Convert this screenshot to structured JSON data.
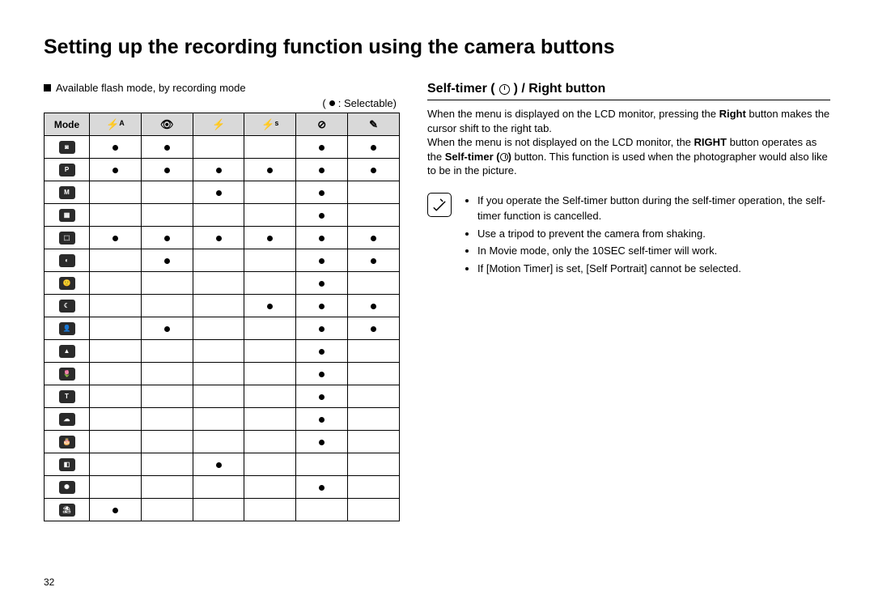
{
  "page_title": "Setting up the recording function using the camera buttons",
  "page_number": "32",
  "left": {
    "section_label": "Available flash mode, by recording mode",
    "legend_prefix": "(",
    "legend_text": " : Selectable)",
    "table": {
      "header_label": "Mode",
      "col_icons": [
        "flash-auto",
        "redeye",
        "flash-fill",
        "flash-slow",
        "flash-off",
        "redeye-fix"
      ],
      "col_display": [
        "⚡ᴬ",
        "👁",
        "⚡",
        "⚡ˢ",
        "⊘",
        "✎"
      ],
      "row_icons": [
        "auto",
        "program",
        "manual",
        "dis",
        "guide",
        "night",
        "portrait",
        "night-scene",
        "child",
        "landscape",
        "closeup",
        "text",
        "sunset",
        "dawn",
        "backlight",
        "firework",
        "beach"
      ],
      "row_display": [
        "◙",
        "P",
        "M",
        "▦",
        "⬚",
        "◐",
        "🙂",
        "☾",
        "👤",
        "▲",
        "🌷",
        "T",
        "☁",
        "🎂",
        "◧",
        "✺",
        "⛱"
      ],
      "cells": [
        [
          1,
          1,
          0,
          0,
          1,
          1
        ],
        [
          1,
          1,
          1,
          1,
          1,
          1
        ],
        [
          0,
          0,
          1,
          0,
          1,
          0
        ],
        [
          0,
          0,
          0,
          0,
          1,
          0
        ],
        [
          1,
          1,
          1,
          1,
          1,
          1
        ],
        [
          0,
          1,
          0,
          0,
          1,
          1
        ],
        [
          0,
          0,
          0,
          0,
          1,
          0
        ],
        [
          0,
          0,
          0,
          1,
          1,
          1
        ],
        [
          0,
          1,
          0,
          0,
          1,
          1
        ],
        [
          0,
          0,
          0,
          0,
          1,
          0
        ],
        [
          0,
          0,
          0,
          0,
          1,
          0
        ],
        [
          0,
          0,
          0,
          0,
          1,
          0
        ],
        [
          0,
          0,
          0,
          0,
          1,
          0
        ],
        [
          0,
          0,
          0,
          0,
          1,
          0
        ],
        [
          0,
          0,
          1,
          0,
          0,
          0
        ],
        [
          0,
          0,
          0,
          0,
          1,
          0
        ],
        [
          1,
          0,
          0,
          0,
          0,
          0
        ]
      ]
    }
  },
  "right": {
    "title_pre": "Self-timer (",
    "title_post": ") / Right button",
    "body_html": "When the menu is displayed on the LCD monitor, pressing the <b>Right</b> button makes the cursor shift to the right tab.<br>When the menu is not displayed on the LCD monitor, the <b>RIGHT</b> button operates as the <b>Self-timer (<span class='timer-icon' style='width:10px;height:10px;vertical-align:middle'></span>)</b> button. This function is used when the photographer would also like to be in the picture.",
    "notes": [
      "If you operate the Self-timer button during the self-timer operation, the self-timer function is cancelled.",
      "Use a tripod to prevent the camera from shaking.",
      "In Movie mode, only the 10SEC self-timer will work.",
      "If [Motion Timer] is set, [Self Portrait] cannot be selected."
    ]
  },
  "colors": {
    "header_bg": "#d9d9d9",
    "text": "#000000",
    "bg": "#ffffff"
  }
}
